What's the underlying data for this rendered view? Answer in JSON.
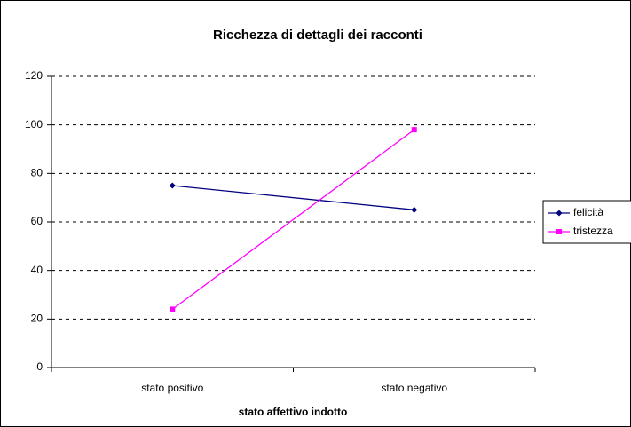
{
  "chart_data": {
    "type": "line",
    "title": "Ricchezza di dettagli dei racconti",
    "x_label": "stato affettivo indotto",
    "categories": [
      "stato positivo",
      "stato negativo"
    ],
    "series": [
      {
        "name": "felicità",
        "color": "#000080",
        "marker": "diamond",
        "values": [
          75,
          65
        ]
      },
      {
        "name": "tristezza",
        "color": "#ff00ff",
        "marker": "square",
        "values": [
          24,
          98
        ]
      }
    ],
    "ylim": [
      0,
      120
    ],
    "yticks": [
      0,
      20,
      40,
      60,
      80,
      100,
      120
    ],
    "grid": true,
    "legend": "right"
  }
}
